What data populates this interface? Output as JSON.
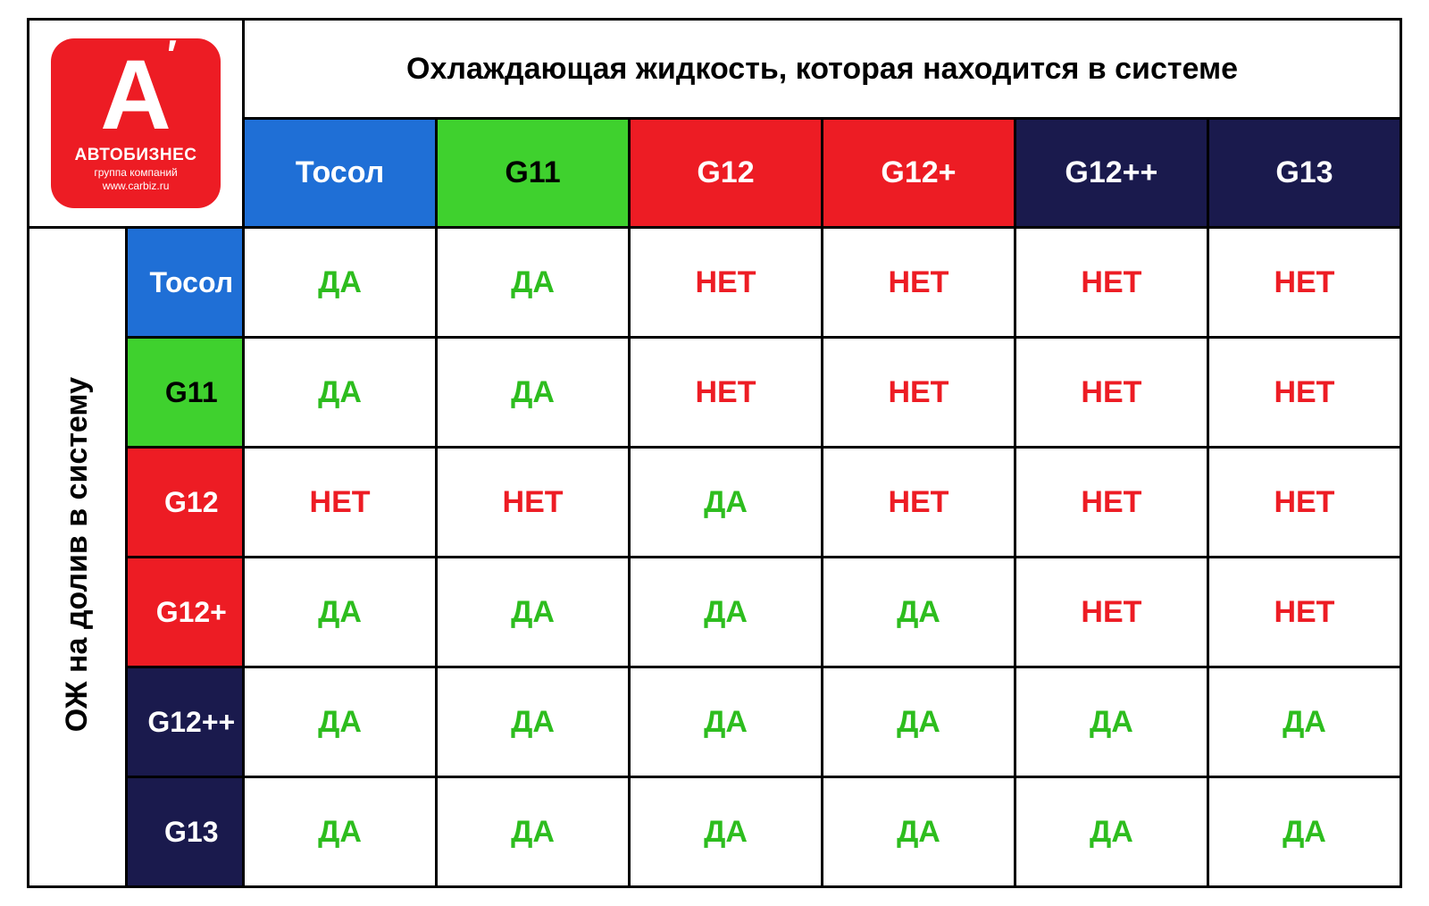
{
  "logo": {
    "bg_color": "#ed1c24",
    "glyph": "А",
    "line1": "АВТОБИЗНЕС",
    "line2": "группа компаний",
    "line3": "www.carbiz.ru"
  },
  "title": "Охлаждающая жидкость, которая находится в системе",
  "side_label": "ОЖ на долив в систему",
  "columns": [
    {
      "label": "Тосол",
      "bg": "#1f6fd6",
      "fg": "#ffffff"
    },
    {
      "label": "G11",
      "bg": "#3fd12e",
      "fg": "#000000"
    },
    {
      "label": "G12",
      "bg": "#ed1c24",
      "fg": "#ffffff"
    },
    {
      "label": "G12+",
      "bg": "#ed1c24",
      "fg": "#ffffff"
    },
    {
      "label": "G12++",
      "bg": "#1a1a4d",
      "fg": "#ffffff"
    },
    {
      "label": "G13",
      "bg": "#1a1a4d",
      "fg": "#ffffff"
    }
  ],
  "rows": [
    {
      "label": "Тосол",
      "bg": "#1f6fd6",
      "fg": "#ffffff"
    },
    {
      "label": "G11",
      "bg": "#3fd12e",
      "fg": "#000000"
    },
    {
      "label": "G12",
      "bg": "#ed1c24",
      "fg": "#ffffff"
    },
    {
      "label": "G12+",
      "bg": "#ed1c24",
      "fg": "#ffffff"
    },
    {
      "label": "G12++",
      "bg": "#1a1a4d",
      "fg": "#ffffff"
    },
    {
      "label": "G13",
      "bg": "#1a1a4d",
      "fg": "#ffffff"
    }
  ],
  "value_labels": {
    "yes": "ДА",
    "no": "НЕТ"
  },
  "value_colors": {
    "yes": "#2dbd1e",
    "no": "#ed1c24"
  },
  "matrix": [
    [
      "yes",
      "yes",
      "no",
      "no",
      "no",
      "no"
    ],
    [
      "yes",
      "yes",
      "no",
      "no",
      "no",
      "no"
    ],
    [
      "no",
      "no",
      "yes",
      "no",
      "no",
      "no"
    ],
    [
      "yes",
      "yes",
      "yes",
      "yes",
      "no",
      "no"
    ],
    [
      "yes",
      "yes",
      "yes",
      "yes",
      "yes",
      "yes"
    ],
    [
      "yes",
      "yes",
      "yes",
      "yes",
      "yes",
      "yes"
    ]
  ],
  "layout": {
    "side_col_width": 110,
    "rowhead_col_width": 130,
    "data_col_width": 215,
    "title_row_height": 100,
    "header_row_height": 110,
    "data_row_height": 120,
    "cell_bg": "#ffffff",
    "border_color": "#000000",
    "font_family": "Arial"
  }
}
